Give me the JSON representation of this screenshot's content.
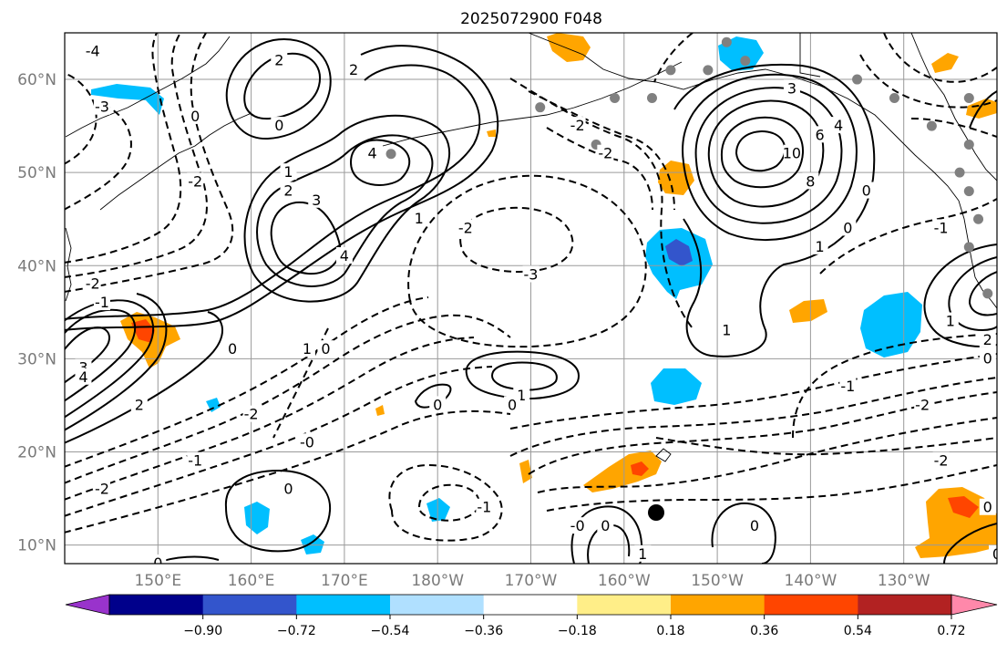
{
  "title": "2025072900 F048",
  "map": {
    "lat_range": [
      8,
      65
    ],
    "lon_range": [
      140,
      240
    ],
    "lat_ticks": [
      {
        "lat": 10,
        "label": "10°N"
      },
      {
        "lat": 20,
        "label": "20°N"
      },
      {
        "lat": 30,
        "label": "30°N"
      },
      {
        "lat": 40,
        "label": "40°N"
      },
      {
        "lat": 50,
        "label": "50°N"
      },
      {
        "lat": 60,
        "label": "60°N"
      }
    ],
    "lon_ticks": [
      {
        "lon": 150,
        "label": "150°E"
      },
      {
        "lon": 160,
        "label": "160°E"
      },
      {
        "lon": 170,
        "label": "170°E"
      },
      {
        "lon": 180,
        "label": "180°W"
      },
      {
        "lon": 190,
        "label": "170°W"
      },
      {
        "lon": 200,
        "label": "160°W"
      },
      {
        "lon": 210,
        "label": "150°W"
      },
      {
        "lon": 220,
        "label": "140°W"
      },
      {
        "lon": 230,
        "label": "130°W"
      }
    ],
    "grid": true,
    "colors": {
      "positive_contour": "#000000",
      "negative_contour": "#000000",
      "station": "#808080",
      "marker": "#000000"
    }
  },
  "colorbar": {
    "bounds": [
      -1.08,
      -0.9,
      -0.72,
      -0.54,
      -0.36,
      -0.18,
      0.18,
      0.36,
      0.54,
      0.72,
      0.9,
      1.08
    ],
    "colors": [
      "#9933cc",
      "#00008b",
      "#3355cc",
      "#00bfff",
      "#b0e0ff",
      "#ffffff",
      "#ffee88",
      "#ffa500",
      "#ff4500",
      "#b22222",
      "#ff88aa"
    ],
    "extend": "both",
    "tick_values": [
      -0.9,
      -0.72,
      -0.54,
      -0.36,
      -0.18,
      0.18,
      0.36,
      0.54,
      0.72,
      0.9
    ],
    "tick_labels": [
      "−0.90",
      "−0.72",
      "−0.54",
      "−0.36",
      "−0.18",
      "0.18",
      "0.36",
      "0.54",
      "0.72",
      "0.90"
    ]
  },
  "contour_labels": [
    {
      "lon": 143,
      "lat": 63,
      "text": "-4"
    },
    {
      "lon": 144,
      "lat": 57,
      "text": "-3"
    },
    {
      "lon": 154,
      "lat": 56,
      "text": "0"
    },
    {
      "lon": 163,
      "lat": 62,
      "text": "2"
    },
    {
      "lon": 171,
      "lat": 61,
      "text": "2"
    },
    {
      "lon": 163,
      "lat": 55,
      "text": "0"
    },
    {
      "lon": 164,
      "lat": 50,
      "text": "1"
    },
    {
      "lon": 164,
      "lat": 48,
      "text": "2"
    },
    {
      "lon": 167,
      "lat": 47,
      "text": "3"
    },
    {
      "lon": 173,
      "lat": 52,
      "text": "4"
    },
    {
      "lon": 170,
      "lat": 41,
      "text": "4"
    },
    {
      "lon": 178,
      "lat": 45,
      "text": "1"
    },
    {
      "lon": 183,
      "lat": 44,
      "text": "-2"
    },
    {
      "lon": 154,
      "lat": 49,
      "text": "-2"
    },
    {
      "lon": 143,
      "lat": 38,
      "text": "-2"
    },
    {
      "lon": 144,
      "lat": 36,
      "text": "-1"
    },
    {
      "lon": 166,
      "lat": 31,
      "text": "1"
    },
    {
      "lon": 168,
      "lat": 31,
      "text": "0"
    },
    {
      "lon": 158,
      "lat": 31,
      "text": "0"
    },
    {
      "lon": 142,
      "lat": 29,
      "text": "3"
    },
    {
      "lon": 142,
      "lat": 28,
      "text": "4"
    },
    {
      "lon": 148,
      "lat": 25,
      "text": "2"
    },
    {
      "lon": 160,
      "lat": 24,
      "text": "-2"
    },
    {
      "lon": 166,
      "lat": 21,
      "text": "-0"
    },
    {
      "lon": 154,
      "lat": 19,
      "text": "-1"
    },
    {
      "lon": 144,
      "lat": 16,
      "text": "-2"
    },
    {
      "lon": 164,
      "lat": 16,
      "text": "0"
    },
    {
      "lon": 150,
      "lat": 8,
      "text": "0"
    },
    {
      "lon": 189,
      "lat": 26,
      "text": "1"
    },
    {
      "lon": 188,
      "lat": 25,
      "text": "0"
    },
    {
      "lon": 180,
      "lat": 25,
      "text": "0"
    },
    {
      "lon": 185,
      "lat": 14,
      "text": "-1"
    },
    {
      "lon": 195,
      "lat": 12,
      "text": "-0"
    },
    {
      "lon": 198,
      "lat": 12,
      "text": "0"
    },
    {
      "lon": 202,
      "lat": 9,
      "text": "1"
    },
    {
      "lon": 214,
      "lat": 12,
      "text": "0"
    },
    {
      "lon": 190,
      "lat": 39,
      "text": "-3"
    },
    {
      "lon": 195,
      "lat": 55,
      "text": "-2"
    },
    {
      "lon": 198,
      "lat": 52,
      "text": "-2"
    },
    {
      "lon": 218,
      "lat": 59,
      "text": "3"
    },
    {
      "lon": 221,
      "lat": 54,
      "text": "6"
    },
    {
      "lon": 223,
      "lat": 55,
      "text": "4"
    },
    {
      "lon": 218,
      "lat": 52,
      "text": "10"
    },
    {
      "lon": 220,
      "lat": 49,
      "text": "8"
    },
    {
      "lon": 224,
      "lat": 44,
      "text": "0"
    },
    {
      "lon": 226,
      "lat": 48,
      "text": "0"
    },
    {
      "lon": 221,
      "lat": 42,
      "text": "1"
    },
    {
      "lon": 211,
      "lat": 33,
      "text": "1"
    },
    {
      "lon": 234,
      "lat": 44,
      "text": "-1"
    },
    {
      "lon": 235,
      "lat": 34,
      "text": "1"
    },
    {
      "lon": 239,
      "lat": 32,
      "text": "2"
    },
    {
      "lon": 239,
      "lat": 30,
      "text": "0"
    },
    {
      "lon": 224,
      "lat": 27,
      "text": "-1"
    },
    {
      "lon": 232,
      "lat": 25,
      "text": "-2"
    },
    {
      "lon": 234,
      "lat": 19,
      "text": "-2"
    },
    {
      "lon": 239,
      "lat": 14,
      "text": "0"
    },
    {
      "lon": 240,
      "lat": 9,
      "text": "0"
    }
  ]
}
